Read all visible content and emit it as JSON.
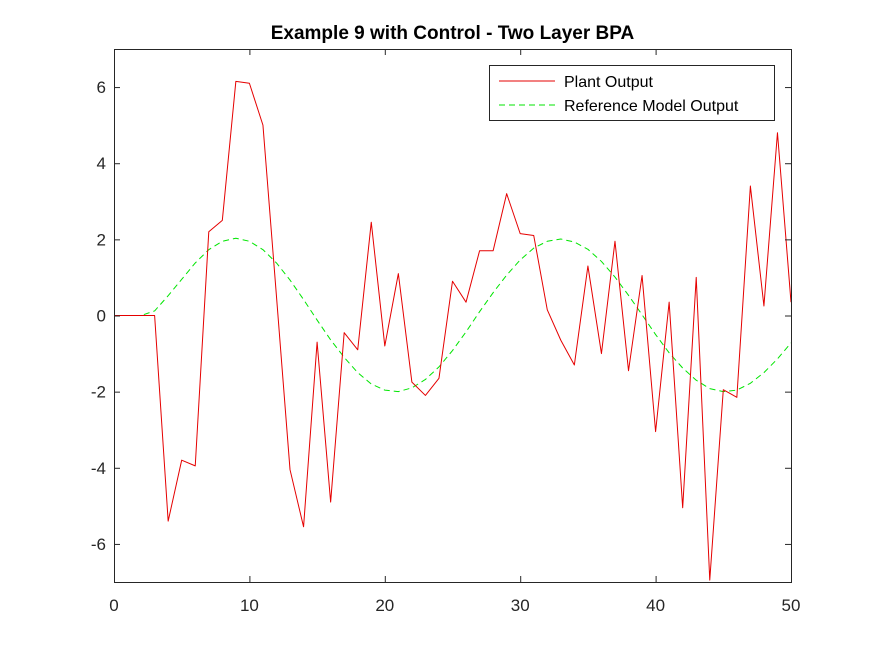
{
  "chart_data": {
    "type": "line",
    "title": "Example 9 with Control - Two Layer BPA",
    "xlabel": "",
    "ylabel": "",
    "xlim": [
      0,
      50
    ],
    "ylim": [
      -7,
      7
    ],
    "xticks": [
      0,
      10,
      20,
      30,
      40,
      50
    ],
    "yticks": [
      -6,
      -4,
      -2,
      0,
      2,
      4,
      6
    ],
    "grid": false,
    "legend_position": "top-right",
    "series": [
      {
        "name": "Plant Output",
        "color": "#e50000",
        "style": "solid",
        "x": [
          0,
          1,
          2,
          3,
          4,
          5,
          6,
          7,
          8,
          9,
          10,
          11,
          12,
          13,
          14,
          15,
          16,
          17,
          18,
          19,
          20,
          21,
          22,
          23,
          24,
          25,
          26,
          27,
          28,
          29,
          30,
          31,
          32,
          33,
          34,
          35,
          36,
          37,
          38,
          39,
          40,
          41,
          42,
          43,
          44,
          45,
          46,
          47,
          48,
          49,
          50
        ],
        "y": [
          0,
          0,
          0,
          0,
          -5.4,
          -3.8,
          -3.95,
          2.2,
          2.5,
          6.15,
          6.1,
          5.0,
          0.5,
          -4.05,
          -5.55,
          -0.7,
          -4.9,
          -0.45,
          -0.9,
          2.45,
          -0.8,
          1.1,
          -1.75,
          -2.1,
          -1.65,
          0.9,
          0.35,
          1.7,
          1.7,
          3.2,
          2.15,
          2.1,
          0.15,
          -0.65,
          -1.3,
          1.3,
          -1.0,
          1.95,
          -1.45,
          1.05,
          -3.05,
          0.35,
          -5.05,
          1.0,
          -6.95,
          -1.95,
          -2.15,
          3.4,
          0.25,
          4.8,
          0.35
        ]
      },
      {
        "name": "Reference Model Output",
        "color": "#00e500",
        "style": "dashed",
        "x": [
          0,
          1,
          2,
          3,
          4,
          5,
          6,
          7,
          8,
          9,
          10,
          11,
          12,
          13,
          14,
          15,
          16,
          17,
          18,
          19,
          20,
          21,
          22,
          23,
          24,
          25,
          26,
          27,
          28,
          29,
          30,
          31,
          32,
          33,
          34,
          35,
          36,
          37,
          38,
          39,
          40,
          41,
          42,
          43,
          44,
          45,
          46,
          47,
          48,
          49,
          50
        ],
        "y": [
          0,
          0,
          0,
          0.12,
          0.52,
          0.95,
          1.38,
          1.73,
          1.95,
          2.03,
          1.95,
          1.73,
          1.38,
          0.93,
          0.42,
          -0.12,
          -0.64,
          -1.1,
          -1.5,
          -1.8,
          -1.96,
          -2.0,
          -1.9,
          -1.68,
          -1.35,
          -0.92,
          -0.43,
          0.1,
          0.6,
          1.06,
          1.46,
          1.77,
          1.95,
          2.01,
          1.93,
          1.74,
          1.42,
          1.01,
          0.53,
          0.02,
          -0.5,
          -0.98,
          -1.38,
          -1.7,
          -1.92,
          -2.0,
          -1.96,
          -1.78,
          -1.5,
          -1.14,
          -0.72
        ]
      }
    ]
  }
}
